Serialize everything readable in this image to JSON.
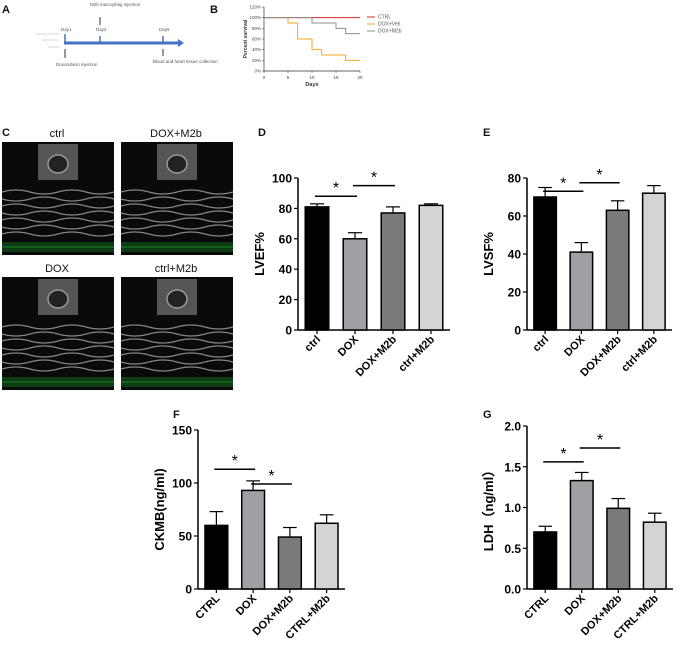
{
  "panels": {
    "A": "A",
    "B": "B",
    "C": "C",
    "D": "D",
    "E": "E",
    "F": "F",
    "G": "G"
  },
  "timeline": {
    "days": [
      "Day1",
      "Day2",
      "Day5"
    ],
    "injection_top": "M2b macrophag injection",
    "dox_injection": "Doxorubicin injection",
    "collection": "Blood and heart tissue collection",
    "color": "#4472c4"
  },
  "echo_labels": [
    "ctrl",
    "DOX+M2b",
    "DOX",
    "ctrl+M2b"
  ],
  "chart_data": [
    {
      "id": "B",
      "type": "line",
      "step": true,
      "xlabel": "Days",
      "ylabel": "Percent survival",
      "xlim": [
        0,
        20
      ],
      "ylim": [
        0,
        120
      ],
      "xticks": [
        "0",
        "5",
        "10",
        "15",
        "20"
      ],
      "yticks": [
        "0%",
        "20%",
        "40%",
        "60%",
        "80%",
        "100%",
        "120%"
      ],
      "legend": "top-right",
      "series": [
        {
          "name": "CTRL",
          "color": "#d62728",
          "x": [
            0,
            20
          ],
          "y": [
            100,
            100
          ]
        },
        {
          "name": "DOX+Veh",
          "color": "#f5a623",
          "x": [
            0,
            5,
            7,
            10,
            12,
            17,
            20
          ],
          "y": [
            100,
            90,
            60,
            40,
            30,
            20,
            20
          ]
        },
        {
          "name": "DOX+M2b",
          "color": "#8c8c8c",
          "x": [
            0,
            10,
            15,
            17,
            20
          ],
          "y": [
            100,
            90,
            80,
            70,
            70
          ]
        }
      ]
    },
    {
      "id": "D",
      "type": "bar",
      "ylabel": "LVEF%",
      "ylim": [
        0,
        100
      ],
      "yticks": [
        "0",
        "20",
        "40",
        "60",
        "80",
        "100"
      ],
      "categories": [
        "ctrl",
        "DOX",
        "DOX+M2b",
        "ctrl+M2b"
      ],
      "values": [
        81,
        60,
        77,
        82
      ],
      "errors": [
        2,
        4,
        4,
        1
      ],
      "colors": [
        "#000000",
        "#a0a0a4",
        "#7a7a7a",
        "#d4d4d4"
      ],
      "significance": [
        {
          "from": 0,
          "to": 1,
          "y": 88,
          "label": "*"
        },
        {
          "from": 1,
          "to": 2,
          "y": 95,
          "label": "*"
        }
      ]
    },
    {
      "id": "E",
      "type": "bar",
      "ylabel": "LVSF%",
      "ylim": [
        0,
        80
      ],
      "yticks": [
        "0",
        "20",
        "40",
        "60",
        "80"
      ],
      "categories": [
        "ctrl",
        "DOX",
        "DOX+M2b",
        "ctrl+M2b"
      ],
      "values": [
        70,
        41,
        63,
        72
      ],
      "errors": [
        5,
        5,
        5,
        4
      ],
      "colors": [
        "#000000",
        "#a0a0a4",
        "#7a7a7a",
        "#d4d4d4"
      ],
      "significance": [
        {
          "from": 0,
          "to": 1,
          "y": 73,
          "label": "*"
        },
        {
          "from": 1,
          "to": 2,
          "y": 77.5,
          "label": "*"
        }
      ]
    },
    {
      "id": "F",
      "type": "bar",
      "ylabel": "CKMB(ng/ml)",
      "ylim": [
        0,
        150
      ],
      "yticks": [
        "0",
        "50",
        "100",
        "150"
      ],
      "categories": [
        "CTRL",
        "DOX",
        "DOX+M2b",
        "CTRL+M2b"
      ],
      "values": [
        60,
        93,
        49,
        62
      ],
      "errors": [
        13,
        9,
        9,
        8
      ],
      "colors": [
        "#000000",
        "#a0a0a4",
        "#7a7a7a",
        "#d4d4d4"
      ],
      "significance": [
        {
          "from": 0,
          "to": 1,
          "y": 113,
          "label": "*"
        },
        {
          "from": 1,
          "to": 2,
          "y": 99,
          "label": "*"
        }
      ]
    },
    {
      "id": "G",
      "type": "bar",
      "ylabel": "LDH（ng/ml）",
      "ylim": [
        0,
        2.0
      ],
      "yticks": [
        "0.0",
        "0.5",
        "1.0",
        "1.5",
        "2.0"
      ],
      "categories": [
        "CTRL",
        "DOX",
        "DOX+M2b",
        "CTRL+M2b"
      ],
      "values": [
        0.7,
        1.33,
        0.99,
        0.82
      ],
      "errors": [
        0.07,
        0.1,
        0.12,
        0.11
      ],
      "colors": [
        "#000000",
        "#a0a0a4",
        "#7a7a7a",
        "#d4d4d4"
      ],
      "significance": [
        {
          "from": 0,
          "to": 1,
          "y": 1.56,
          "label": "*"
        },
        {
          "from": 1,
          "to": 2,
          "y": 1.73,
          "label": "*"
        }
      ]
    }
  ]
}
